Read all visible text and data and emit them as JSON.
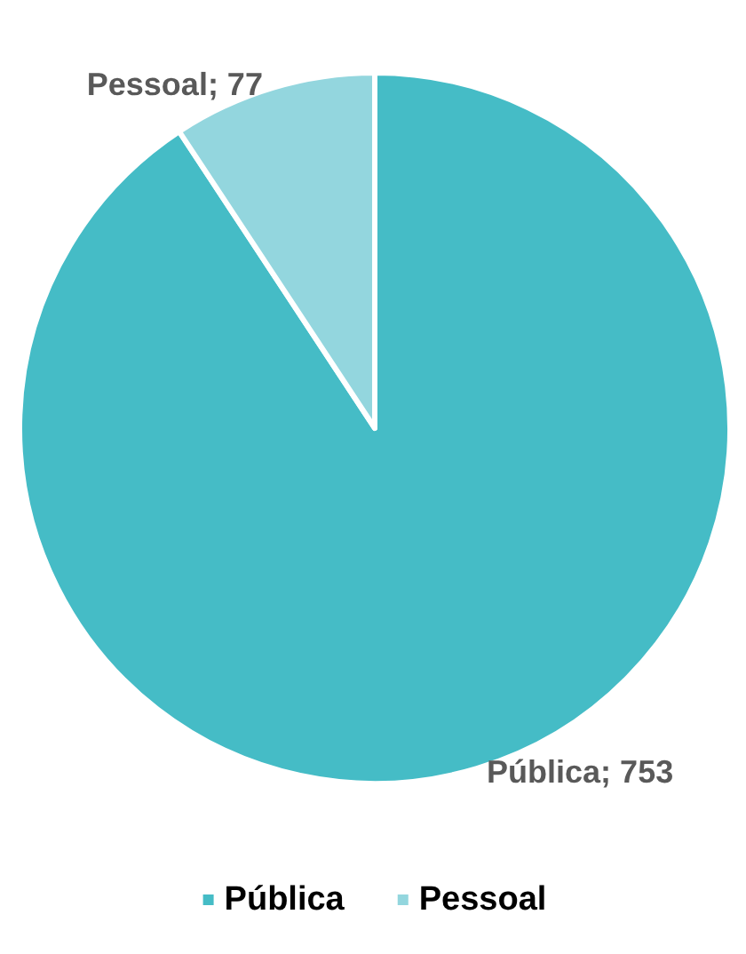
{
  "chart_data": {
    "type": "pie",
    "categories": [
      "Pública",
      "Pessoal"
    ],
    "values": [
      753,
      77
    ],
    "colors": [
      "#45bcc6",
      "#93d6de"
    ],
    "value_labels": [
      "Pública; 753",
      "Pessoal; 77"
    ],
    "legend": "bottom"
  }
}
